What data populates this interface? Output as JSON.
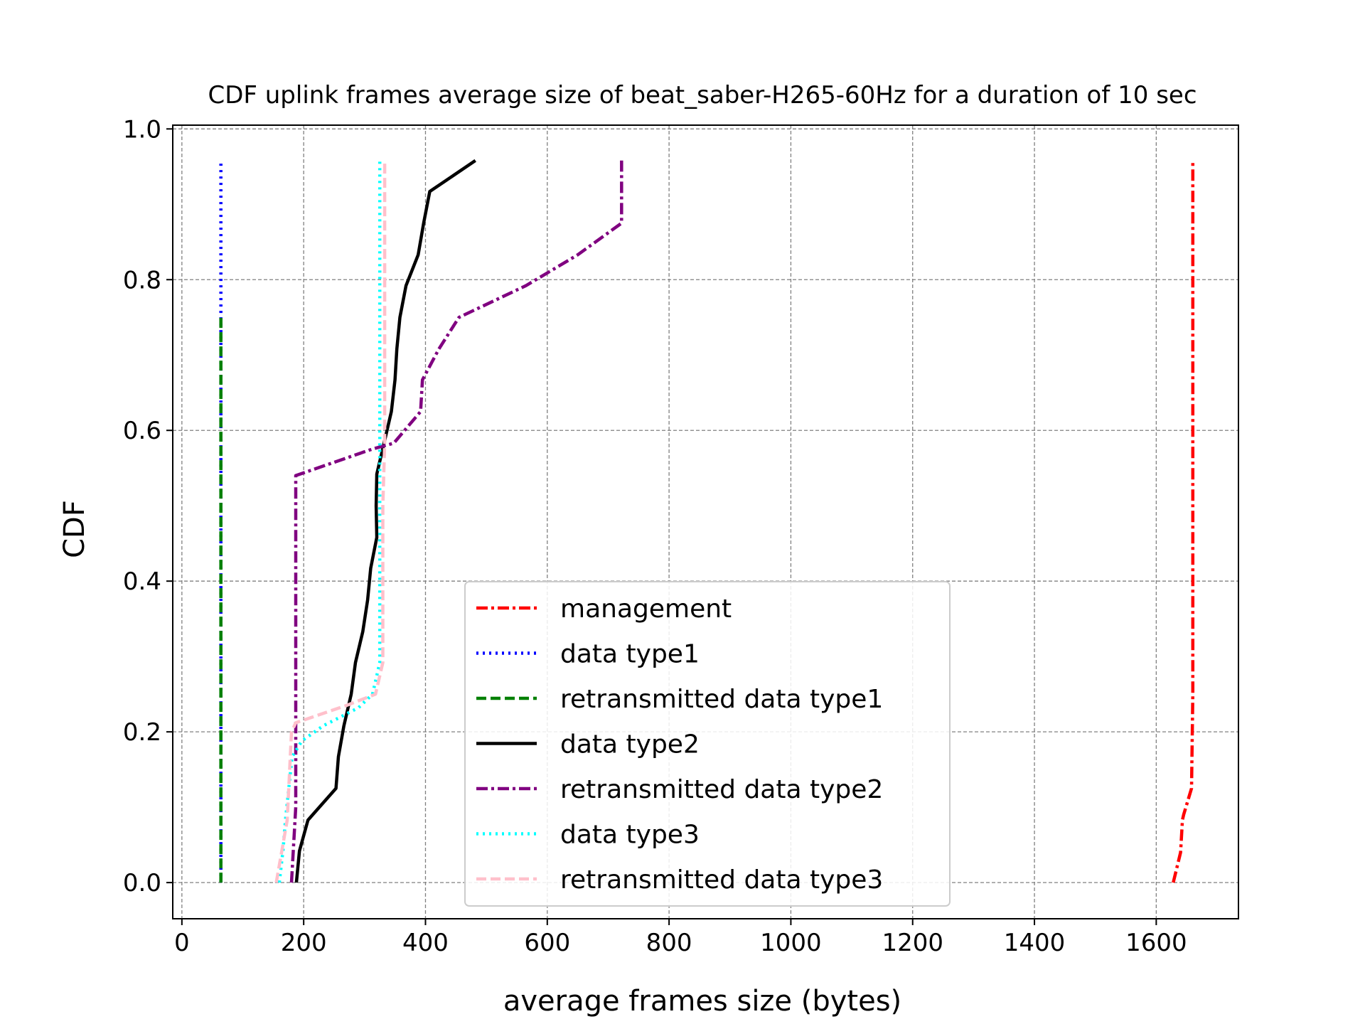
{
  "chart_data": {
    "type": "line",
    "title": "CDF uplink frames average size of beat_saber-H265-60Hz for a duration of 10 sec",
    "xlabel": "average frames size (bytes)",
    "ylabel": "CDF",
    "xlim": [
      -15,
      1735
    ],
    "ylim": [
      -0.048,
      1.005
    ],
    "xticks": [
      0,
      200,
      400,
      600,
      800,
      1000,
      1200,
      1400,
      1600
    ],
    "xtick_labels": [
      "0",
      "200",
      "400",
      "600",
      "800",
      "1000",
      "1200",
      "1400",
      "1600"
    ],
    "yticks": [
      0.0,
      0.2,
      0.4,
      0.6,
      0.8,
      1.0
    ],
    "ytick_labels": [
      "0.0",
      "0.2",
      "0.4",
      "0.6",
      "0.8",
      "1.0"
    ],
    "grid": true,
    "legend_position": "lower-center",
    "series": [
      {
        "name": "management",
        "color": "#ff0000",
        "dash": "dashdot",
        "points": [
          [
            1628,
            0.0
          ],
          [
            1640,
            0.04
          ],
          [
            1643,
            0.083
          ],
          [
            1645,
            0.09
          ],
          [
            1658,
            0.125
          ],
          [
            1660,
            0.25
          ],
          [
            1660,
            0.5
          ],
          [
            1660,
            0.75
          ],
          [
            1660,
            0.958
          ]
        ]
      },
      {
        "name": "data type1",
        "color": "#0000ff",
        "dash": "dotted",
        "points": [
          [
            64,
            0.0
          ],
          [
            64,
            0.5
          ],
          [
            64,
            0.958
          ]
        ]
      },
      {
        "name": "retransmitted data type1",
        "color": "#008000",
        "dash": "dashed",
        "points": [
          [
            64,
            0.0
          ],
          [
            64,
            0.375
          ],
          [
            64,
            0.75
          ]
        ]
      },
      {
        "name": "data type2",
        "color": "#000000",
        "dash": "solid",
        "points": [
          [
            188,
            0.0
          ],
          [
            193,
            0.042
          ],
          [
            207,
            0.083
          ],
          [
            253,
            0.125
          ],
          [
            257,
            0.167
          ],
          [
            266,
            0.208
          ],
          [
            278,
            0.25
          ],
          [
            285,
            0.292
          ],
          [
            297,
            0.333
          ],
          [
            305,
            0.375
          ],
          [
            310,
            0.417
          ],
          [
            320,
            0.458
          ],
          [
            319,
            0.5
          ],
          [
            320,
            0.542
          ],
          [
            332,
            0.583
          ],
          [
            344,
            0.625
          ],
          [
            350,
            0.667
          ],
          [
            353,
            0.708
          ],
          [
            358,
            0.75
          ],
          [
            368,
            0.792
          ],
          [
            388,
            0.833
          ],
          [
            397,
            0.875
          ],
          [
            407,
            0.917
          ],
          [
            482,
            0.958
          ]
        ]
      },
      {
        "name": "retransmitted data type2",
        "color": "#800080",
        "dash": "dashdot",
        "points": [
          [
            180,
            0.0
          ],
          [
            187,
            0.1
          ],
          [
            187,
            0.54
          ],
          [
            312,
            0.575
          ],
          [
            348,
            0.583
          ],
          [
            392,
            0.625
          ],
          [
            395,
            0.667
          ],
          [
            422,
            0.708
          ],
          [
            455,
            0.75
          ],
          [
            565,
            0.792
          ],
          [
            650,
            0.833
          ],
          [
            722,
            0.875
          ],
          [
            722,
            0.917
          ],
          [
            722,
            0.958
          ]
        ]
      },
      {
        "name": "data type3",
        "color": "#00ffff",
        "dash": "dotted",
        "points": [
          [
            160,
            0.0
          ],
          [
            166,
            0.042
          ],
          [
            170,
            0.083
          ],
          [
            181,
            0.167
          ],
          [
            197,
            0.188
          ],
          [
            232,
            0.208
          ],
          [
            290,
            0.232
          ],
          [
            313,
            0.25
          ],
          [
            325,
            0.292
          ],
          [
            325,
            0.5
          ],
          [
            325,
            0.958
          ]
        ]
      },
      {
        "name": "retransmitted data type3",
        "color": "#ffc0cb",
        "dash": "dashed",
        "points": [
          [
            155,
            0.0
          ],
          [
            173,
            0.083
          ],
          [
            180,
            0.2
          ],
          [
            187,
            0.212
          ],
          [
            270,
            0.235
          ],
          [
            318,
            0.25
          ],
          [
            330,
            0.292
          ],
          [
            330,
            0.5
          ],
          [
            333,
            0.583
          ],
          [
            333,
            0.958
          ]
        ]
      }
    ]
  }
}
